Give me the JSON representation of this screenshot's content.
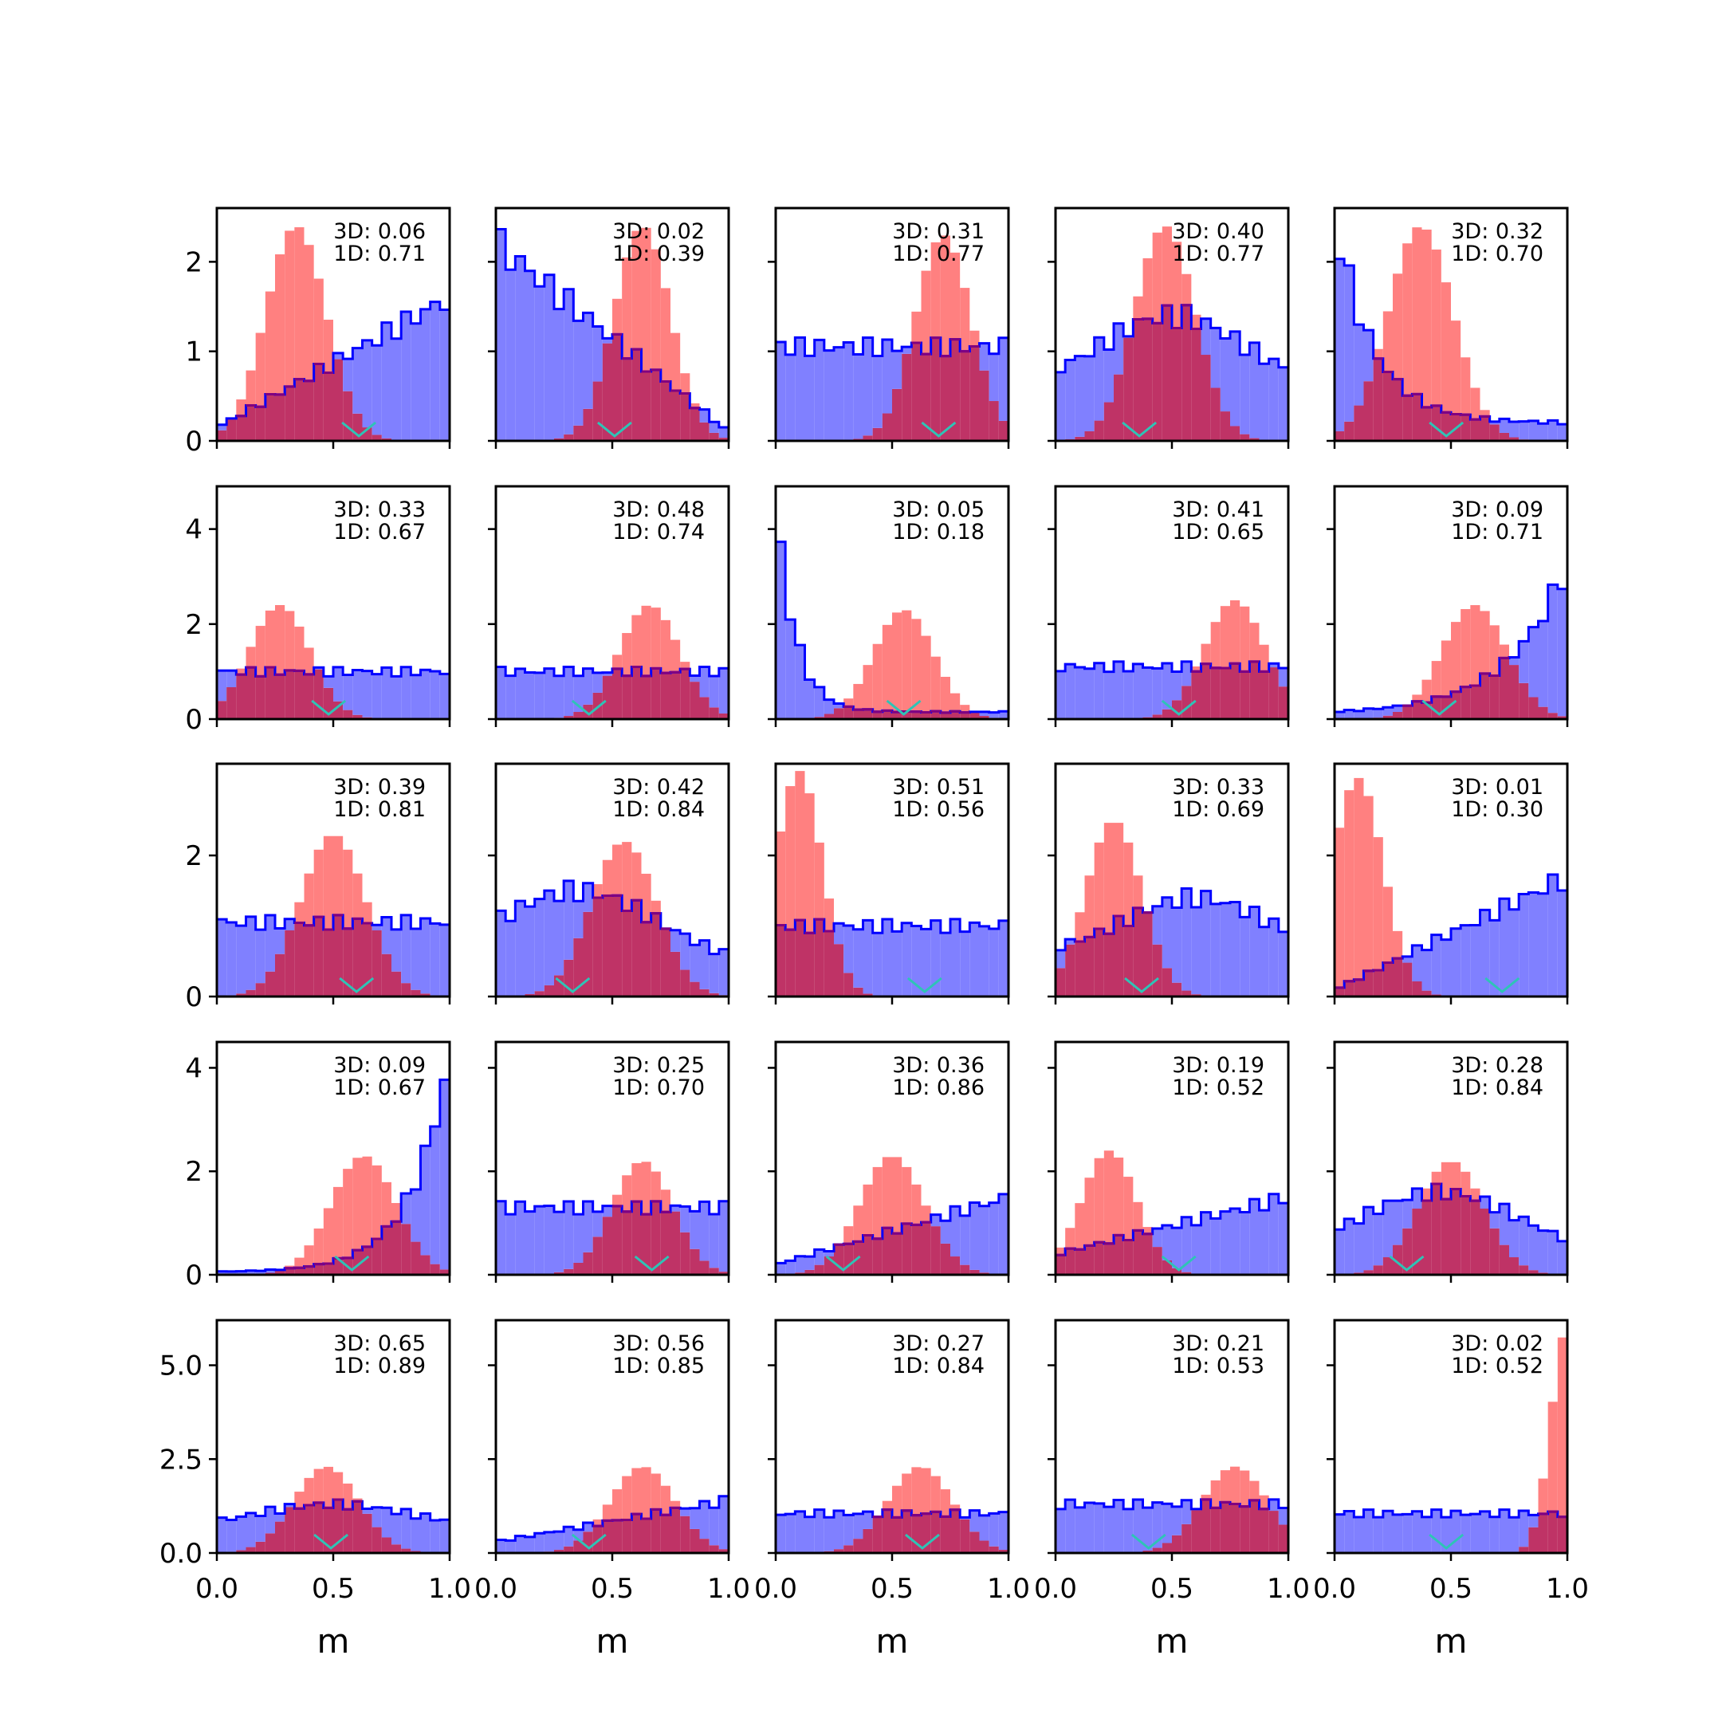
{
  "chart_data": {
    "type": "histogram-grid",
    "rows": 5,
    "cols": 5,
    "xlabel": "m",
    "xlim": [
      0,
      1
    ],
    "xticks": [
      0.0,
      0.5,
      1.0
    ],
    "xtick_labels": [
      "0.0",
      "0.5",
      "1.0"
    ],
    "colors": {
      "blue_fill": "#8080ff",
      "blue_line": "#0000ff",
      "red_fill": "#ff8080",
      "overlap": "#bf3366",
      "overlap_line": "#800080",
      "marker": "#2ec4b6"
    },
    "row_axes": [
      {
        "ylim": [
          0,
          2.6
        ],
        "yticks": [
          0,
          1,
          2
        ],
        "ytick_labels": [
          "0",
          "1",
          "2"
        ]
      },
      {
        "ylim": [
          0,
          4.9
        ],
        "yticks": [
          0,
          2,
          4
        ],
        "ytick_labels": [
          "0",
          "2",
          "4"
        ]
      },
      {
        "ylim": [
          0,
          3.3
        ],
        "yticks": [
          0,
          2
        ],
        "ytick_labels": [
          "0",
          "2"
        ]
      },
      {
        "ylim": [
          0,
          4.5
        ],
        "yticks": [
          0,
          2,
          4
        ],
        "ytick_labels": [
          "0",
          "2",
          "4"
        ]
      },
      {
        "ylim": [
          0,
          6.2
        ],
        "yticks": [
          0,
          2.5,
          5.0
        ],
        "ytick_labels": [
          "0.0",
          "2.5",
          "5.0"
        ]
      }
    ],
    "panels": [
      {
        "label3d": "3D: 0.06",
        "label1d": "1D: 0.71",
        "blue": {
          "shape": "ramp",
          "a": 0.15,
          "b": 1.6
        },
        "red": {
          "mu": 0.34,
          "peak": 2.4,
          "sd": 0.13
        },
        "marker": 0.61
      },
      {
        "label3d": "3D: 0.02",
        "label1d": "1D: 0.39",
        "blue": {
          "shape": "ramp",
          "a": 2.2,
          "b": 0.1
        },
        "red": {
          "mu": 0.63,
          "peak": 2.4,
          "sd": 0.12
        },
        "marker": 0.51
      },
      {
        "label3d": "3D: 0.31",
        "label1d": "1D: 0.77",
        "blue": {
          "shape": "flat",
          "level": 1.05
        },
        "red": {
          "mu": 0.72,
          "peak": 2.3,
          "sd": 0.12
        },
        "marker": 0.7
      },
      {
        "label3d": "3D: 0.40",
        "label1d": "1D: 0.77",
        "blue": {
          "shape": "bump",
          "mu": 0.5,
          "peak": 1.4,
          "base": 0.6,
          "sd": 0.3
        },
        "red": {
          "mu": 0.47,
          "peak": 2.4,
          "sd": 0.13
        },
        "marker": 0.36
      },
      {
        "label3d": "3D: 0.32",
        "label1d": "1D: 0.70",
        "blue": {
          "shape": "decay",
          "a": 2.5,
          "b": 0.2,
          "k": 6
        },
        "red": {
          "mu": 0.37,
          "peak": 2.4,
          "sd": 0.14
        },
        "marker": 0.48
      },
      {
        "label3d": "3D: 0.33",
        "label1d": "1D: 0.67",
        "blue": {
          "shape": "flat",
          "level": 1.0
        },
        "red": {
          "mu": 0.27,
          "peak": 2.4,
          "sd": 0.13
        },
        "marker": 0.48
      },
      {
        "label3d": "3D: 0.48",
        "label1d": "1D: 0.74",
        "blue": {
          "shape": "flat",
          "level": 1.0
        },
        "red": {
          "mu": 0.66,
          "peak": 2.4,
          "sd": 0.13
        },
        "marker": 0.4
      },
      {
        "label3d": "3D: 0.05",
        "label1d": "1D: 0.18",
        "blue": {
          "shape": "decay",
          "a": 4.6,
          "b": 0.15,
          "k": 12
        },
        "red": {
          "mu": 0.55,
          "peak": 2.3,
          "sd": 0.13
        },
        "marker": 0.55
      },
      {
        "label3d": "3D: 0.41",
        "label1d": "1D: 0.65",
        "blue": {
          "shape": "flat",
          "level": 1.1
        },
        "red": {
          "mu": 0.77,
          "peak": 2.5,
          "sd": 0.13
        },
        "marker": 0.53
      },
      {
        "label3d": "3D: 0.09",
        "label1d": "1D: 0.71",
        "blue": {
          "shape": "grow",
          "a": 0.1,
          "b": 3.3,
          "k": 4
        },
        "red": {
          "mu": 0.6,
          "peak": 2.4,
          "sd": 0.14
        },
        "marker": 0.45
      },
      {
        "label3d": "3D: 0.39",
        "label1d": "1D: 0.81",
        "blue": {
          "shape": "flat",
          "level": 1.05
        },
        "red": {
          "mu": 0.5,
          "peak": 2.3,
          "sd": 0.14
        },
        "marker": 0.6
      },
      {
        "label3d": "3D: 0.42",
        "label1d": "1D: 0.84",
        "blue": {
          "shape": "bump",
          "mu": 0.35,
          "peak": 1.5,
          "base": 0.4,
          "sd": 0.35
        },
        "red": {
          "mu": 0.55,
          "peak": 2.2,
          "sd": 0.14
        },
        "marker": 0.33
      },
      {
        "label3d": "3D: 0.51",
        "label1d": "1D: 0.56",
        "blue": {
          "shape": "flat",
          "level": 1.0
        },
        "red": {
          "mu": 0.1,
          "peak": 3.2,
          "sd": 0.1
        },
        "marker": 0.64
      },
      {
        "label3d": "3D: 0.33",
        "label1d": "1D: 0.69",
        "blue": {
          "shape": "bump",
          "mu": 0.6,
          "peak": 1.4,
          "base": 0.6,
          "sd": 0.3
        },
        "red": {
          "mu": 0.25,
          "peak": 2.5,
          "sd": 0.12
        },
        "marker": 0.37
      },
      {
        "label3d": "3D: 0.01",
        "label1d": "1D: 0.30",
        "blue": {
          "shape": "ramp",
          "a": 0.1,
          "b": 1.7
        },
        "red": {
          "mu": 0.1,
          "peak": 3.1,
          "sd": 0.11
        },
        "marker": 0.72
      },
      {
        "label3d": "3D: 0.09",
        "label1d": "1D: 0.67",
        "blue": {
          "shape": "grow",
          "a": 0.05,
          "b": 4.3,
          "k": 6
        },
        "red": {
          "mu": 0.63,
          "peak": 2.3,
          "sd": 0.14
        },
        "marker": 0.58
      },
      {
        "label3d": "3D: 0.25",
        "label1d": "1D: 0.70",
        "blue": {
          "shape": "flat",
          "level": 1.3
        },
        "red": {
          "mu": 0.63,
          "peak": 2.2,
          "sd": 0.13
        },
        "marker": 0.67
      },
      {
        "label3d": "3D: 0.36",
        "label1d": "1D: 0.86",
        "blue": {
          "shape": "ramp",
          "a": 0.2,
          "b": 1.5
        },
        "red": {
          "mu": 0.5,
          "peak": 2.3,
          "sd": 0.14
        },
        "marker": 0.29
      },
      {
        "label3d": "3D: 0.19",
        "label1d": "1D: 0.52",
        "blue": {
          "shape": "ramp",
          "a": 0.4,
          "b": 1.5
        },
        "red": {
          "mu": 0.23,
          "peak": 2.4,
          "sd": 0.12
        },
        "marker": 0.53
      },
      {
        "label3d": "3D: 0.28",
        "label1d": "1D: 0.84",
        "blue": {
          "shape": "bump",
          "mu": 0.45,
          "peak": 1.6,
          "base": 0.3,
          "sd": 0.35
        },
        "red": {
          "mu": 0.5,
          "peak": 2.2,
          "sd": 0.14
        },
        "marker": 0.31
      },
      {
        "label3d": "3D: 0.65",
        "label1d": "1D: 0.89",
        "blue": {
          "shape": "bump",
          "mu": 0.5,
          "peak": 1.3,
          "base": 0.6,
          "sd": 0.35
        },
        "red": {
          "mu": 0.47,
          "peak": 2.3,
          "sd": 0.14
        },
        "marker": 0.49
      },
      {
        "label3d": "3D: 0.56",
        "label1d": "1D: 0.85",
        "blue": {
          "shape": "ramp",
          "a": 0.3,
          "b": 1.4
        },
        "red": {
          "mu": 0.63,
          "peak": 2.3,
          "sd": 0.14
        },
        "marker": 0.4
      },
      {
        "label3d": "3D: 0.27",
        "label1d": "1D: 0.84",
        "blue": {
          "shape": "flat",
          "level": 1.05
        },
        "red": {
          "mu": 0.62,
          "peak": 2.3,
          "sd": 0.14
        },
        "marker": 0.63
      },
      {
        "label3d": "3D: 0.21",
        "label1d": "1D: 0.53",
        "blue": {
          "shape": "flat",
          "level": 1.3
        },
        "red": {
          "mu": 0.77,
          "peak": 2.3,
          "sd": 0.14
        },
        "marker": 0.4
      },
      {
        "label3d": "3D: 0.02",
        "label1d": "1D: 0.52",
        "blue": {
          "shape": "flat",
          "level": 1.05
        },
        "red": {
          "mu": 1.0,
          "peak": 6.0,
          "sd": 0.07
        },
        "marker": 0.48
      }
    ]
  }
}
